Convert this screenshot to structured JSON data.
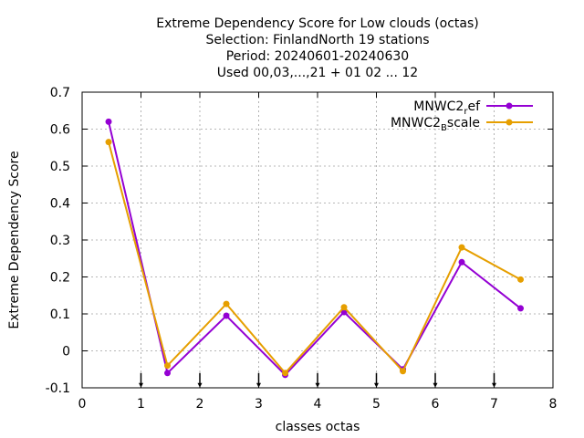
{
  "chart_data": {
    "type": "line",
    "title_lines": [
      "Extreme Dependency Score  for Low clouds (octas)",
      "Selection: FinlandNorth     19 stations",
      "Period: 20240601-20240630",
      "Used 00,03,...,21 + 01 02 ... 12"
    ],
    "xlabel": "classes octas",
    "ylabel": "Extreme Dependency Score",
    "xlim": [
      0,
      8
    ],
    "ylim": [
      -0.1,
      0.7
    ],
    "x_ticks": [
      0,
      1,
      2,
      3,
      4,
      5,
      6,
      7,
      8
    ],
    "x_tick_labels": [
      "0",
      "1",
      "2",
      "3",
      "4",
      "5",
      "6",
      "7",
      "8"
    ],
    "y_ticks": [
      -0.1,
      0,
      0.1,
      0.2,
      0.3,
      0.4,
      0.5,
      0.6,
      0.7
    ],
    "y_tick_labels": [
      "-0.1",
      "0",
      "0.1",
      "0.2",
      "0.3",
      "0.4",
      "0.5",
      "0.6",
      "0.7"
    ],
    "grid": true,
    "legend_position": "top-right",
    "class_markers_x": [
      1,
      2,
      3,
      4,
      5,
      6,
      7
    ],
    "x": [
      0.45,
      1.45,
      2.45,
      3.45,
      4.45,
      5.45,
      6.45,
      7.45
    ],
    "series": [
      {
        "name_main": "MNWC2",
        "name_sub": "r",
        "name_rest": "ef",
        "color": "#9400d3",
        "values": [
          0.62,
          -0.06,
          0.095,
          -0.065,
          0.105,
          -0.05,
          0.24,
          0.115
        ]
      },
      {
        "name_main": "MNWC2",
        "name_sub": "B",
        "name_rest": "scale",
        "color": "#e69f00",
        "values": [
          0.565,
          -0.04,
          0.127,
          -0.06,
          0.118,
          -0.055,
          0.28,
          0.193
        ]
      }
    ]
  }
}
